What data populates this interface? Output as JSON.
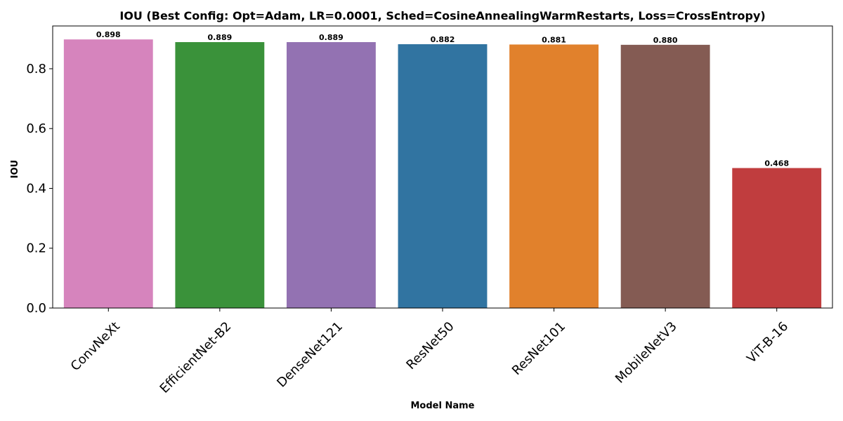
{
  "chart_data": {
    "type": "bar",
    "title": "IOU (Best Config: Opt=Adam, LR=0.0001, Sched=CosineAnnealingWarmRestarts, Loss=CrossEntropy)",
    "xlabel": "Model Name",
    "ylabel": "IOU",
    "categories": [
      "ConvNeXt",
      "EfficientNet-B2",
      "DenseNet121",
      "ResNet50",
      "ResNet101",
      "MobileNetV3",
      "ViT-B-16"
    ],
    "values": [
      0.898,
      0.889,
      0.889,
      0.882,
      0.881,
      0.88,
      0.468
    ],
    "value_labels": [
      "0.898",
      "0.889",
      "0.889",
      "0.882",
      "0.881",
      "0.880",
      "0.468"
    ],
    "colors": [
      "#d684bd",
      "#3a923a",
      "#9372b2",
      "#3174a1",
      "#e1812c",
      "#845b53",
      "#c03d3e"
    ],
    "ylim": [
      0,
      0.943
    ],
    "yticks": [
      0.0,
      0.2,
      0.4,
      0.6,
      0.8
    ],
    "ytick_labels": [
      "0.0",
      "0.2",
      "0.4",
      "0.6",
      "0.8"
    ],
    "grid": false,
    "legend": "none"
  }
}
